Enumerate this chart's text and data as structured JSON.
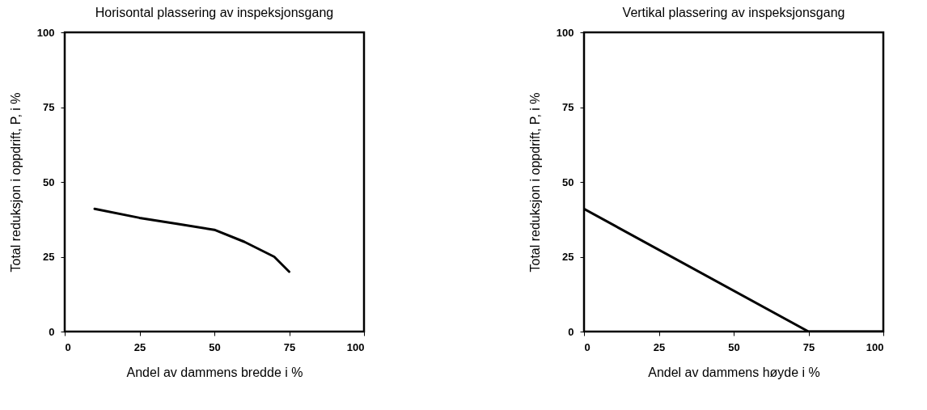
{
  "chart_data": [
    {
      "type": "line",
      "title": "Horisontal plassering av inspeksjonsgang",
      "xlabel": "Andel av dammens bredde i %",
      "ylabel": "Total reduksjon i oppdrift, P, i %",
      "x": [
        10,
        25,
        37.5,
        50,
        60,
        70,
        75
      ],
      "series": [
        {
          "color": "#000000",
          "values": [
            41,
            38,
            36,
            34,
            30,
            25,
            20
          ]
        }
      ],
      "xlim": [
        0,
        100
      ],
      "ylim": [
        0,
        100
      ],
      "xticks": [
        0,
        25,
        50,
        75,
        100
      ],
      "yticks": [
        0,
        25,
        50,
        75,
        100
      ]
    },
    {
      "type": "line",
      "title": "Vertikal plassering av inspeksjonsgang",
      "xlabel": "Andel av dammens høyde i %",
      "ylabel": "Total reduksjon i oppdrift, P, i %",
      "x": [
        0,
        75,
        100
      ],
      "series": [
        {
          "color": "#000000",
          "values": [
            41,
            0,
            0
          ]
        }
      ],
      "xlim": [
        0,
        100
      ],
      "ylim": [
        0,
        100
      ],
      "xticks": [
        0,
        25,
        50,
        75,
        100
      ],
      "yticks": [
        0,
        25,
        50,
        75,
        100
      ]
    }
  ]
}
